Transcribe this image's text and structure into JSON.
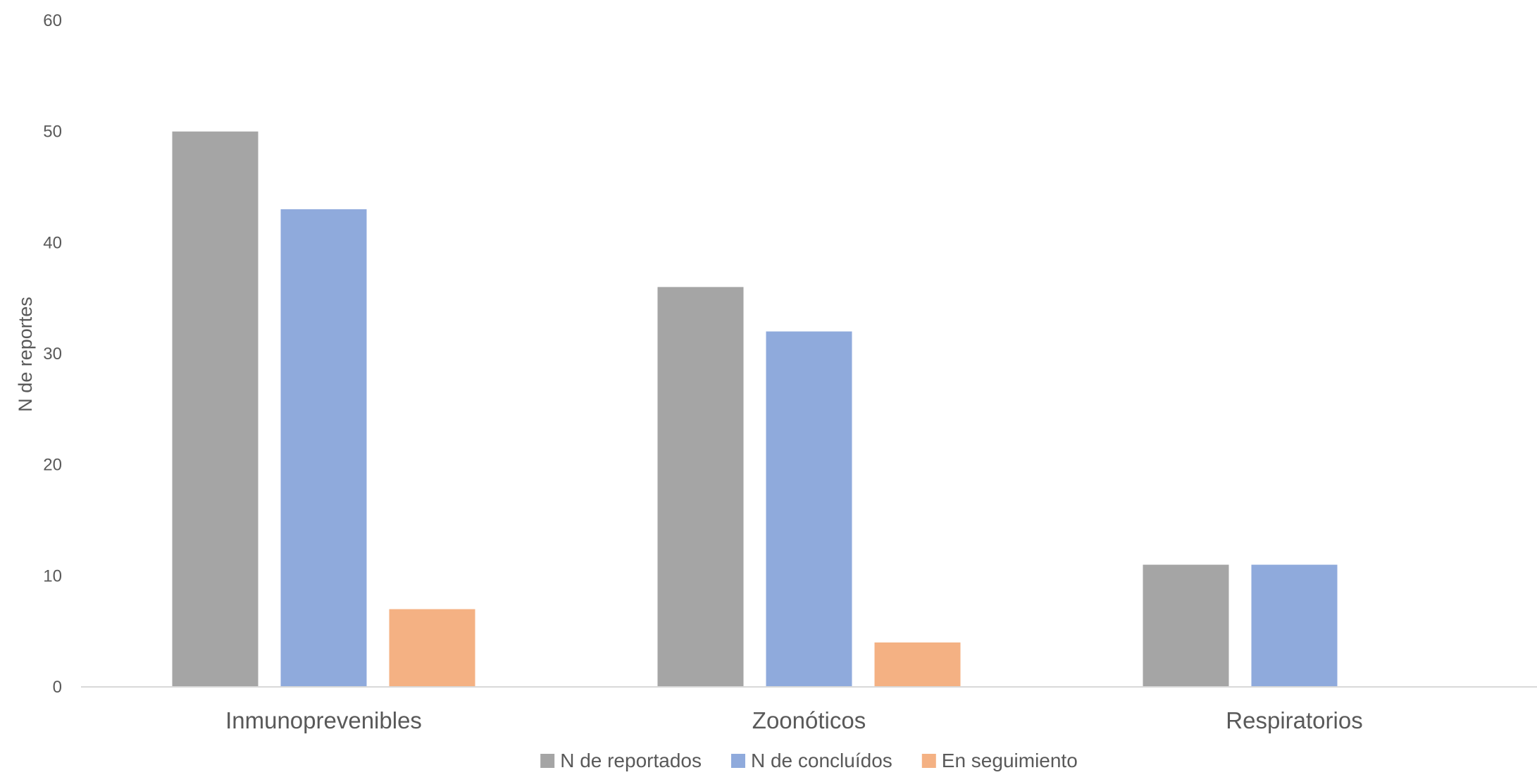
{
  "chart_data": {
    "type": "bar",
    "title": "",
    "xlabel": "",
    "ylabel": "N de reportes",
    "ylim": [
      0,
      60
    ],
    "yticks": [
      0,
      10,
      20,
      30,
      40,
      50,
      60
    ],
    "grid": false,
    "legend_position": "bottom",
    "categories": [
      "Inmunoprevenibles",
      "Zoonóticos",
      "Respiratorios"
    ],
    "series": [
      {
        "name": "N de reportados",
        "color": "#a5a5a5",
        "values": [
          50,
          36,
          11
        ]
      },
      {
        "name": "N de concluídos",
        "color": "#8faadc",
        "values": [
          43,
          32,
          11
        ]
      },
      {
        "name": "En seguimiento",
        "color": "#f4b183",
        "values": [
          7,
          4,
          null
        ]
      }
    ]
  }
}
